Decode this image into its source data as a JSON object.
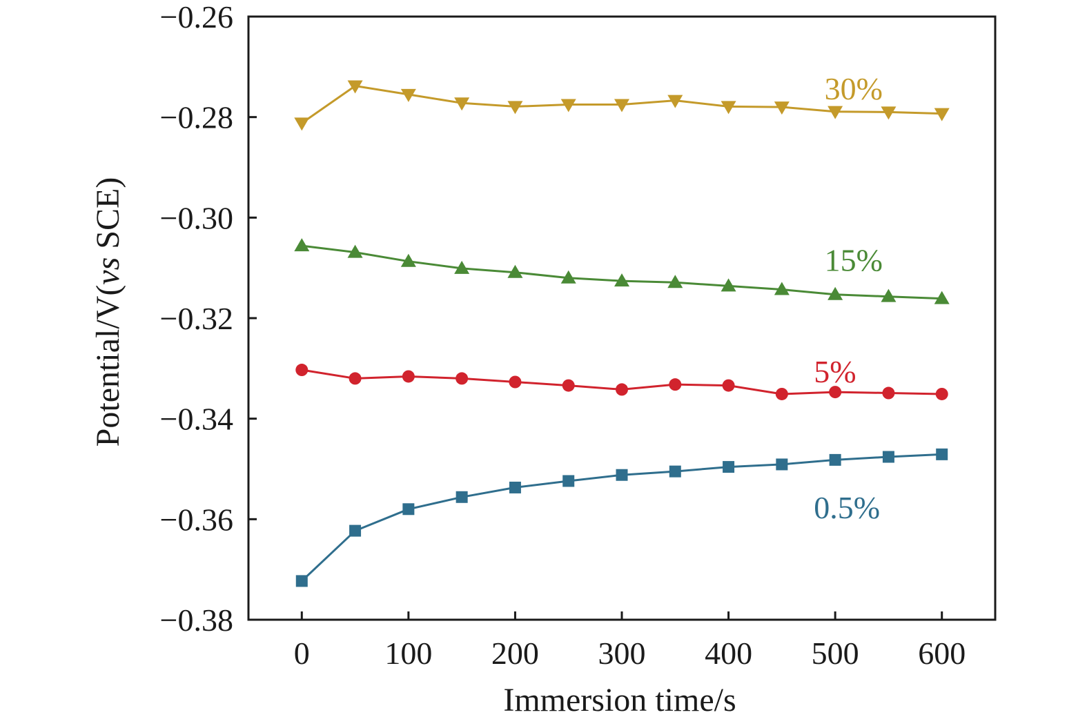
{
  "chart_data": {
    "type": "line",
    "title": "",
    "xlabel": "Immersion time/s",
    "ylabel": {
      "prefix": "Potential/V(",
      "italic": "vs",
      "suffix": " SCE)"
    },
    "xlim": [
      -50,
      650
    ],
    "ylim": [
      -0.38,
      -0.26
    ],
    "xticks": [
      0,
      100,
      200,
      300,
      400,
      500,
      600
    ],
    "xtick_labels": [
      "0",
      "100",
      "200",
      "300",
      "400",
      "500",
      "600"
    ],
    "yticks": [
      -0.38,
      -0.36,
      -0.34,
      -0.32,
      -0.3,
      -0.28,
      -0.26
    ],
    "ytick_labels": [
      "−0.38",
      "−0.36",
      "−0.34",
      "−0.32",
      "−0.30",
      "−0.28",
      "−0.26"
    ],
    "grid": false,
    "legend": "inline labels next to each series",
    "x": [
      0,
      50,
      100,
      150,
      200,
      250,
      300,
      350,
      400,
      450,
      500,
      550,
      600
    ],
    "series": [
      {
        "name": "30%",
        "color": "#C49A2A",
        "marker": "triangle-down",
        "label_at": [
          490,
          -0.2765
        ],
        "values": [
          -0.2812,
          -0.2738,
          -0.2755,
          -0.2772,
          -0.2779,
          -0.2775,
          -0.2775,
          -0.2767,
          -0.2779,
          -0.278,
          -0.2789,
          -0.279,
          -0.2793
        ]
      },
      {
        "name": "15%",
        "color": "#4A8A36",
        "marker": "triangle-up",
        "label_at": [
          490,
          -0.3106
        ],
        "values": [
          -0.3056,
          -0.3069,
          -0.3087,
          -0.3101,
          -0.3109,
          -0.312,
          -0.3126,
          -0.3129,
          -0.3136,
          -0.3143,
          -0.3153,
          -0.3157,
          -0.3161
        ]
      },
      {
        "name": "5%",
        "color": "#D1232D",
        "marker": "circle",
        "label_at": [
          480,
          -0.3328
        ],
        "values": [
          -0.3303,
          -0.332,
          -0.3316,
          -0.332,
          -0.3327,
          -0.3334,
          -0.3342,
          -0.3332,
          -0.3334,
          -0.3351,
          -0.3347,
          -0.3349,
          -0.3351
        ]
      },
      {
        "name": "0.5%",
        "color": "#2F6E8D",
        "marker": "square",
        "label_at": [
          480,
          -0.3598
        ],
        "values": [
          -0.3723,
          -0.3623,
          -0.358,
          -0.3556,
          -0.3537,
          -0.3524,
          -0.3512,
          -0.3505,
          -0.3496,
          -0.3491,
          -0.3482,
          -0.3476,
          -0.3471
        ]
      }
    ]
  }
}
